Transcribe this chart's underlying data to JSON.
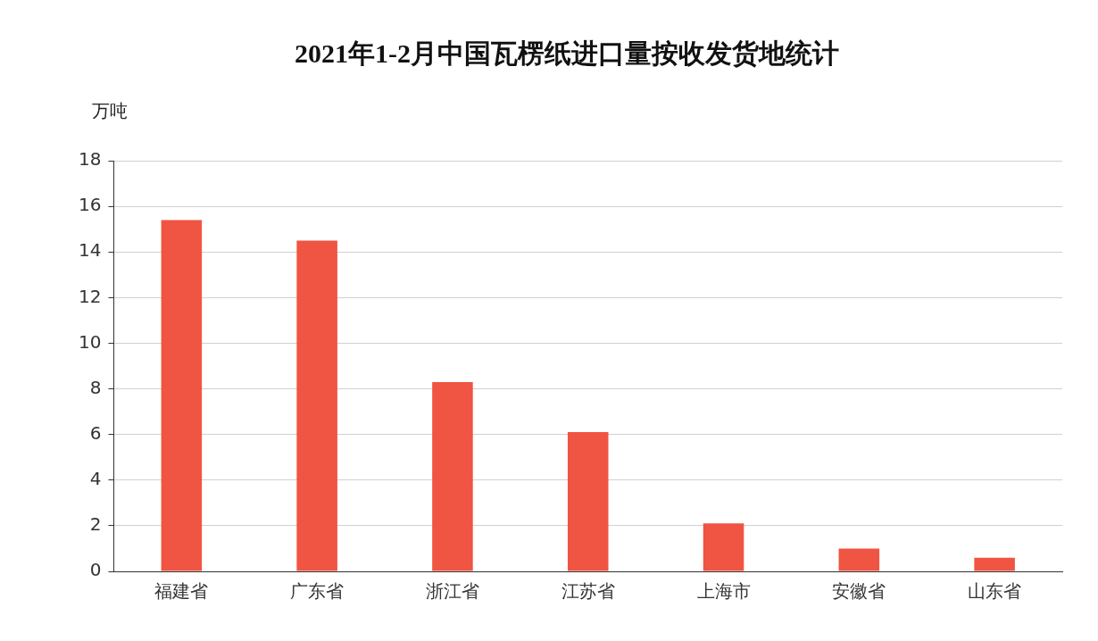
{
  "chart_data": {
    "type": "bar",
    "title": "2021年1-2月中国瓦楞纸进口量按收发货地统计",
    "ylabel": "万吨",
    "categories": [
      "福建省",
      "广东省",
      "浙江省",
      "江苏省",
      "上海市",
      "安徽省",
      "山东省"
    ],
    "values": [
      15.4,
      14.5,
      8.3,
      6.1,
      2.1,
      1.0,
      0.6
    ],
    "color": "#f05442",
    "ylim": [
      0,
      18
    ],
    "yticks": [
      0,
      2,
      4,
      6,
      8,
      10,
      12,
      14,
      16,
      18
    ],
    "grid": "y",
    "legend": false
  }
}
